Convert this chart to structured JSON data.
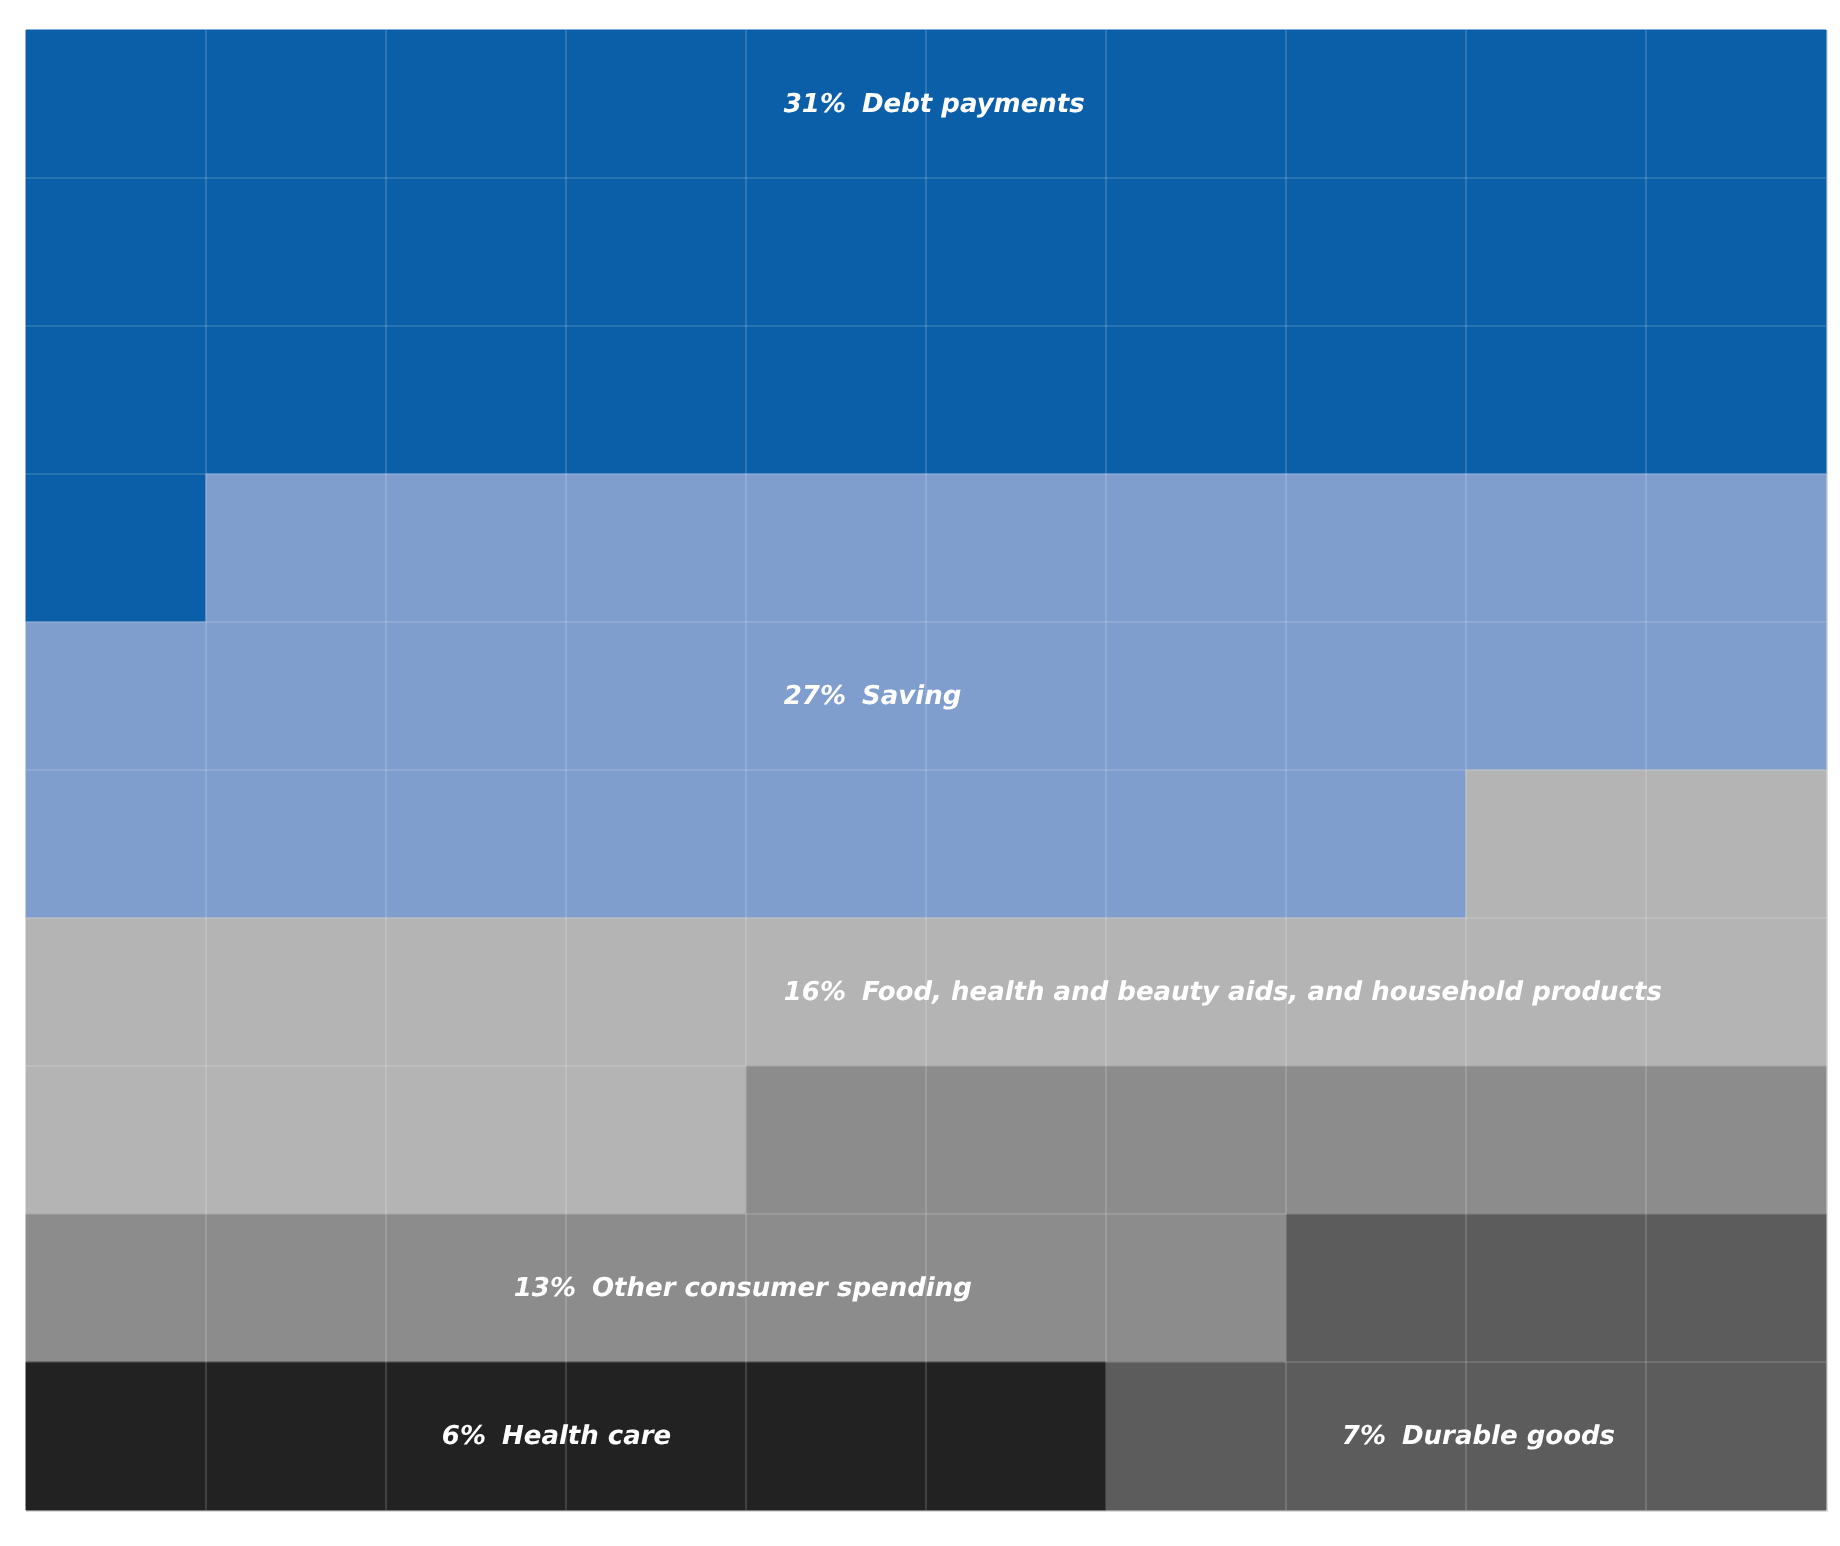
{
  "chart_data": {
    "type": "other",
    "categories": [
      "Debt payments",
      "Saving",
      "Food, health and beauty aids, and household products",
      "Other consumer spending",
      "Durable goods",
      "Health care"
    ],
    "values": [
      31,
      27,
      16,
      13,
      7,
      6
    ],
    "value_labels": [
      "31%",
      "27%",
      "16%",
      "13%",
      "7%",
      "6%"
    ],
    "colors": [
      "#0b5fa8",
      "#7f9dcd",
      "#b4b4b4",
      "#8c8c8c",
      "#5c5c5c",
      "#222222"
    ]
  }
}
